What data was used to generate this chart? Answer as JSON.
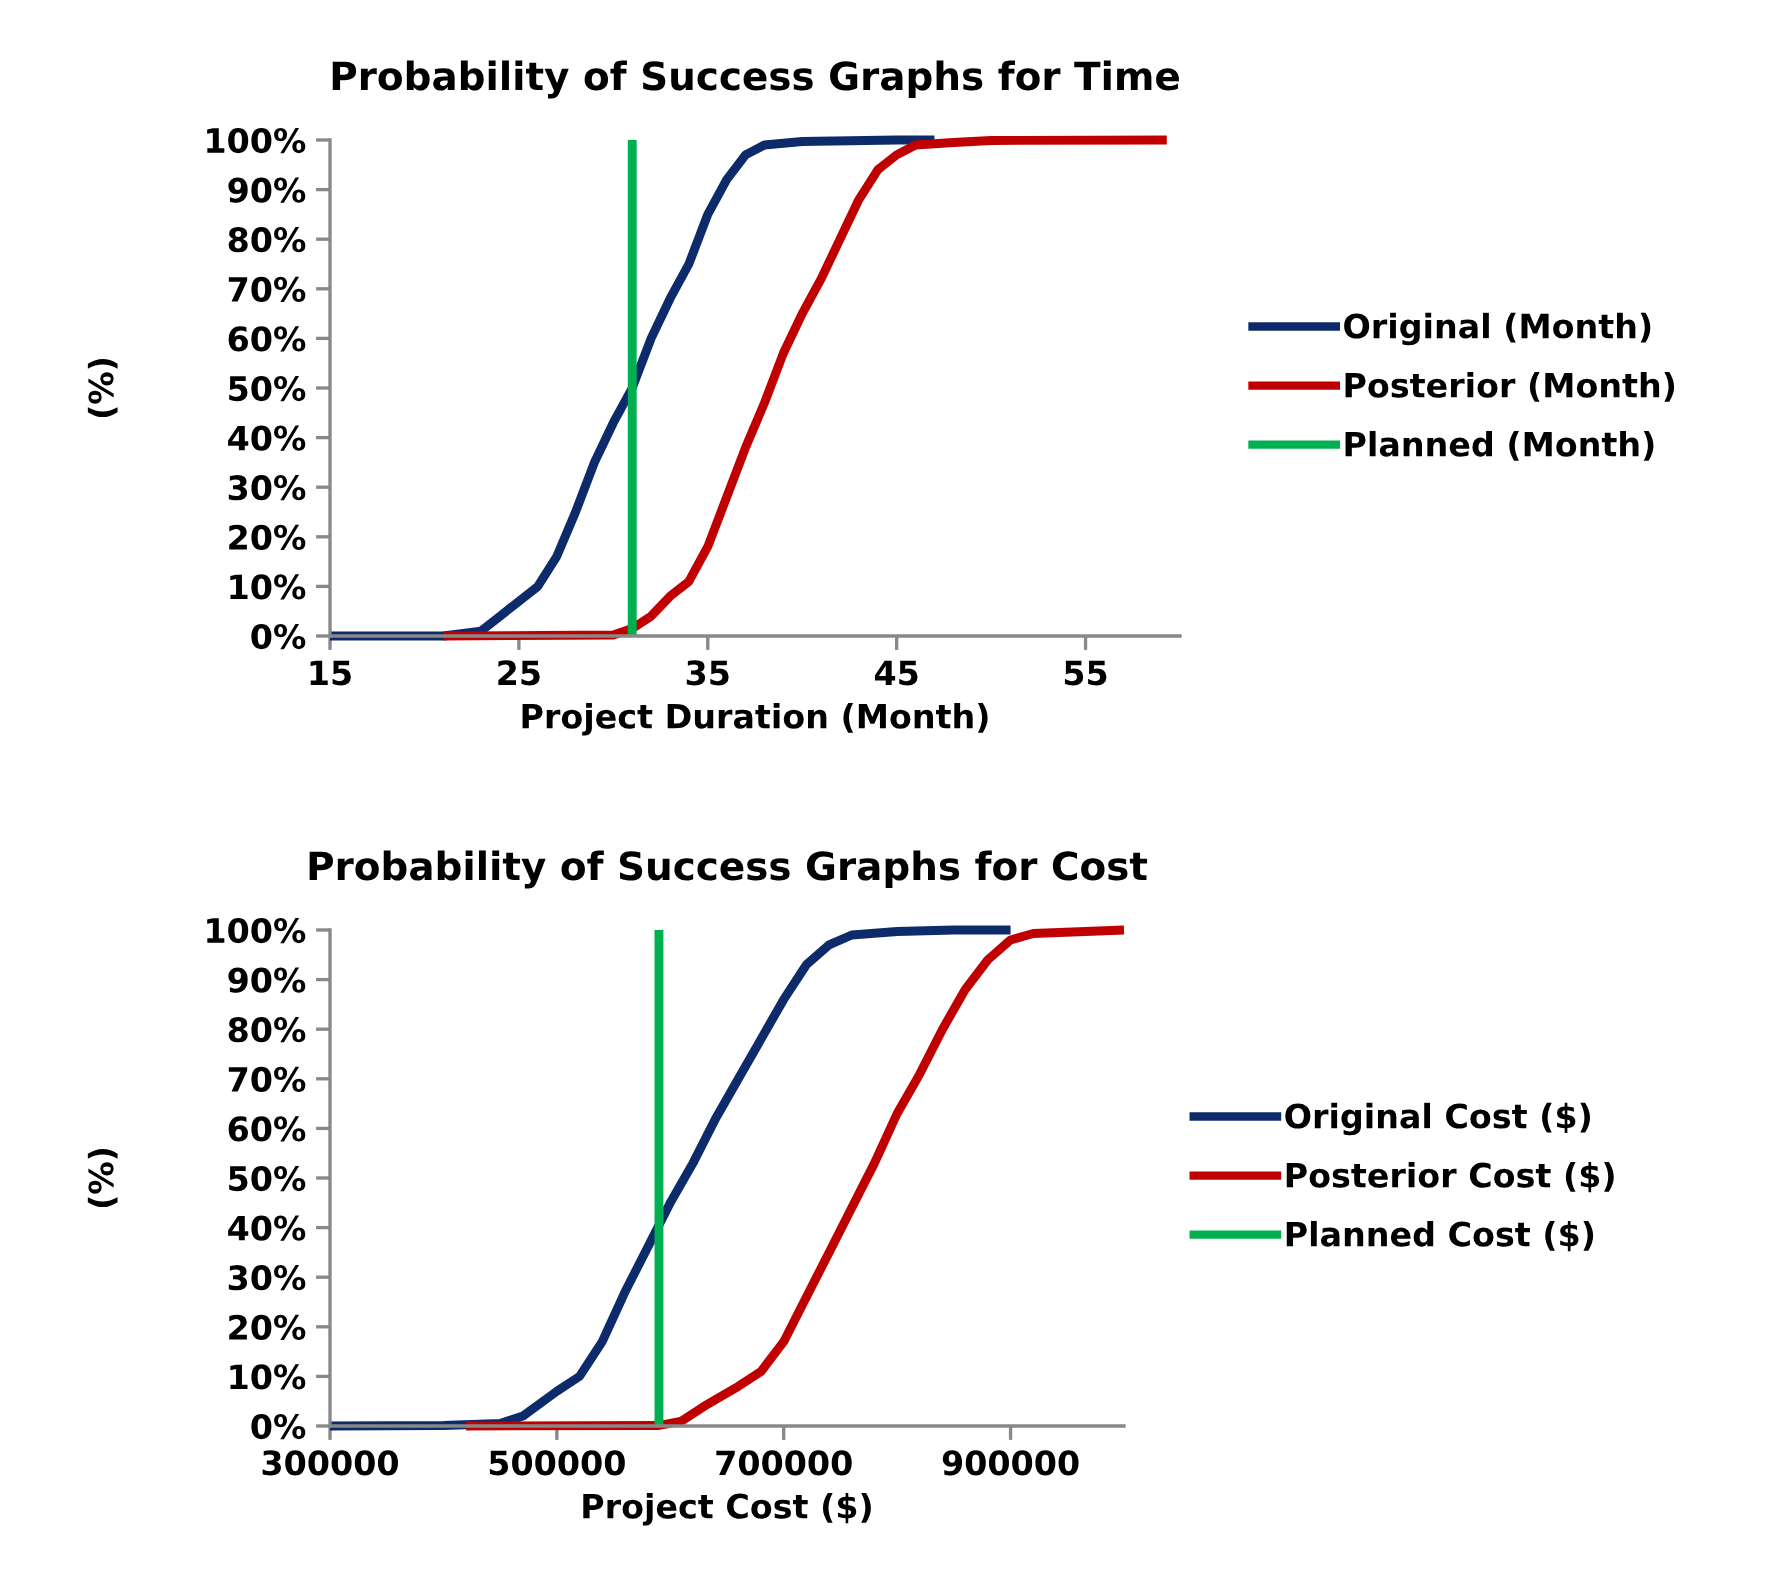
{
  "chart_data": [
    {
      "type": "line",
      "title": "Probability of Success Graphs for Time",
      "xlabel": "Project Duration (Month)",
      "ylabel": "(%)",
      "xlim": [
        15,
        60
      ],
      "xticks": [
        15,
        25,
        35,
        45,
        55
      ],
      "ylim": [
        0,
        100
      ],
      "yticks": [
        {
          "value": 0,
          "label": "0%"
        },
        {
          "value": 10,
          "label": "10%"
        },
        {
          "value": 20,
          "label": "20%"
        },
        {
          "value": 30,
          "label": "30%"
        },
        {
          "value": 40,
          "label": "40%"
        },
        {
          "value": 50,
          "label": "50%"
        },
        {
          "value": 60,
          "label": "60%"
        },
        {
          "value": 70,
          "label": "70%"
        },
        {
          "value": 80,
          "label": "80%"
        },
        {
          "value": 90,
          "label": "90%"
        },
        {
          "value": 100,
          "label": "100%"
        }
      ],
      "grid": false,
      "legend": "right",
      "marker": "none",
      "series": [
        {
          "name": "Original (Month)",
          "color": "#0d2a6b",
          "x": [
            15,
            21,
            23,
            24,
            26,
            27,
            28,
            29,
            30,
            31,
            32,
            33,
            34,
            35,
            36,
            37,
            38,
            40,
            45,
            47
          ],
          "values": [
            0,
            0,
            1,
            4,
            10,
            16,
            25,
            35,
            43,
            50,
            60,
            68,
            75,
            85,
            92,
            97,
            99,
            99.7,
            100,
            100
          ]
        },
        {
          "name": "Posterior (Month)",
          "color": "#c00000",
          "x": [
            21,
            30,
            31,
            32,
            33,
            34,
            35,
            36,
            37,
            38,
            39,
            40,
            41,
            42,
            43,
            44,
            45,
            46,
            48,
            50,
            59.3
          ],
          "values": [
            0,
            0.2,
            1.5,
            4,
            8,
            11,
            18,
            28,
            38,
            47,
            57,
            65,
            72,
            80,
            88,
            94,
            97,
            99,
            99.5,
            99.9,
            100
          ]
        },
        {
          "name": "Planned (Month)",
          "color": "#00b050",
          "x": [
            31,
            31
          ],
          "values": [
            0,
            100
          ]
        }
      ]
    },
    {
      "type": "line",
      "title": "Probability of Success Graphs for Cost",
      "xlabel": "Project Cost ($)",
      "ylabel": "(%)",
      "xlim": [
        300000,
        1000000
      ],
      "xticks": [
        300000,
        500000,
        700000,
        900000
      ],
      "ylim": [
        0,
        100
      ],
      "yticks": [
        {
          "value": 0,
          "label": "0%"
        },
        {
          "value": 10,
          "label": "10%"
        },
        {
          "value": 20,
          "label": "20%"
        },
        {
          "value": 30,
          "label": "30%"
        },
        {
          "value": 40,
          "label": "40%"
        },
        {
          "value": 50,
          "label": "50%"
        },
        {
          "value": 60,
          "label": "60%"
        },
        {
          "value": 70,
          "label": "70%"
        },
        {
          "value": 80,
          "label": "80%"
        },
        {
          "value": 90,
          "label": "90%"
        },
        {
          "value": 100,
          "label": "100%"
        }
      ],
      "grid": false,
      "legend": "right",
      "marker": "none",
      "series": [
        {
          "name": "Original Cost ($)",
          "color": "#0d2a6b",
          "x": [
            300000,
            400000,
            450000,
            470000,
            500000,
            520000,
            540000,
            560000,
            580000,
            600000,
            620000,
            640000,
            660000,
            680000,
            700000,
            720000,
            740000,
            760000,
            800000,
            850000,
            900000
          ],
          "values": [
            0,
            0.1,
            0.5,
            2,
            7,
            10,
            17,
            27,
            36,
            45,
            53,
            62,
            70,
            78,
            86,
            93,
            97,
            99,
            99.7,
            100,
            100
          ]
        },
        {
          "name": "Posterior Cost ($)",
          "color": "#c00000",
          "x": [
            420000,
            590000,
            610000,
            630000,
            660000,
            680000,
            700000,
            720000,
            740000,
            760000,
            780000,
            800000,
            820000,
            840000,
            860000,
            880000,
            900000,
            920000,
            1000000
          ],
          "values": [
            0,
            0.1,
            1,
            4,
            8,
            11,
            17,
            26,
            35,
            44,
            53,
            63,
            71,
            80,
            88,
            94,
            98,
            99.3,
            100
          ]
        },
        {
          "name": "Planned Cost ($)",
          "color": "#00b050",
          "x": [
            590000,
            590000
          ],
          "values": [
            0,
            100
          ]
        }
      ]
    }
  ]
}
